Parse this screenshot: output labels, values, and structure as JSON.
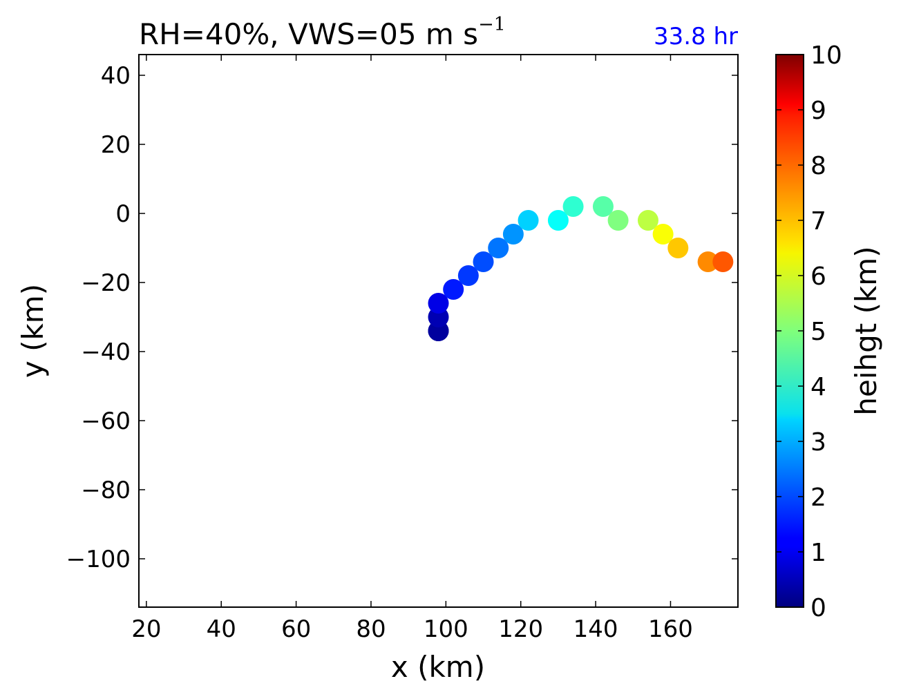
{
  "chart_data": {
    "type": "scatter",
    "title": "RH=40%, VWS=05 m s",
    "title_superscript": "−1",
    "annotation": "33.8 hr",
    "annotation_color": "#0000ff",
    "xlabel": "x (km)",
    "ylabel": "y (km)",
    "xlim": [
      18,
      178
    ],
    "ylim": [
      -114,
      46
    ],
    "xticks": [
      20,
      40,
      60,
      80,
      100,
      120,
      140,
      160
    ],
    "yticks": [
      40,
      20,
      0,
      -20,
      -40,
      -60,
      -80,
      -100
    ],
    "xtick_labels": [
      "20",
      "40",
      "60",
      "80",
      "100",
      "120",
      "140",
      "160"
    ],
    "ytick_labels": [
      "40",
      "20",
      "0",
      "−20",
      "−40",
      "−60",
      "−80",
      "−100"
    ],
    "colorbar": {
      "label": "heihgt (km)",
      "colormap": "jet",
      "range": [
        0,
        10
      ],
      "ticks": [
        0,
        1,
        2,
        3,
        4,
        5,
        6,
        7,
        8,
        9,
        10
      ],
      "tick_labels": [
        "0",
        "1",
        "2",
        "3",
        "4",
        "5",
        "6",
        "7",
        "8",
        "9",
        "10"
      ]
    },
    "grid": false,
    "points": [
      {
        "x": 98,
        "y": -34,
        "height": 0.0
      },
      {
        "x": 98,
        "y": -34,
        "height": 0.3
      },
      {
        "x": 98,
        "y": -30,
        "height": 0.5
      },
      {
        "x": 98,
        "y": -26,
        "height": 1.0
      },
      {
        "x": 102,
        "y": -22,
        "height": 1.5
      },
      {
        "x": 106,
        "y": -18,
        "height": 1.8
      },
      {
        "x": 110,
        "y": -14,
        "height": 2.0
      },
      {
        "x": 114,
        "y": -10,
        "height": 2.4
      },
      {
        "x": 118,
        "y": -6,
        "height": 2.7
      },
      {
        "x": 122,
        "y": -2,
        "height": 3.3
      },
      {
        "x": 130,
        "y": -2,
        "height": 3.8
      },
      {
        "x": 134,
        "y": 2,
        "height": 4.2
      },
      {
        "x": 142,
        "y": 2,
        "height": 4.6
      },
      {
        "x": 146,
        "y": -2,
        "height": 5.0
      },
      {
        "x": 154,
        "y": -2,
        "height": 5.6
      },
      {
        "x": 158,
        "y": -6,
        "height": 6.2
      },
      {
        "x": 162,
        "y": -10,
        "height": 6.8
      },
      {
        "x": 170,
        "y": -14,
        "height": 7.4
      },
      {
        "x": 174,
        "y": -14,
        "height": 7.9
      }
    ]
  }
}
